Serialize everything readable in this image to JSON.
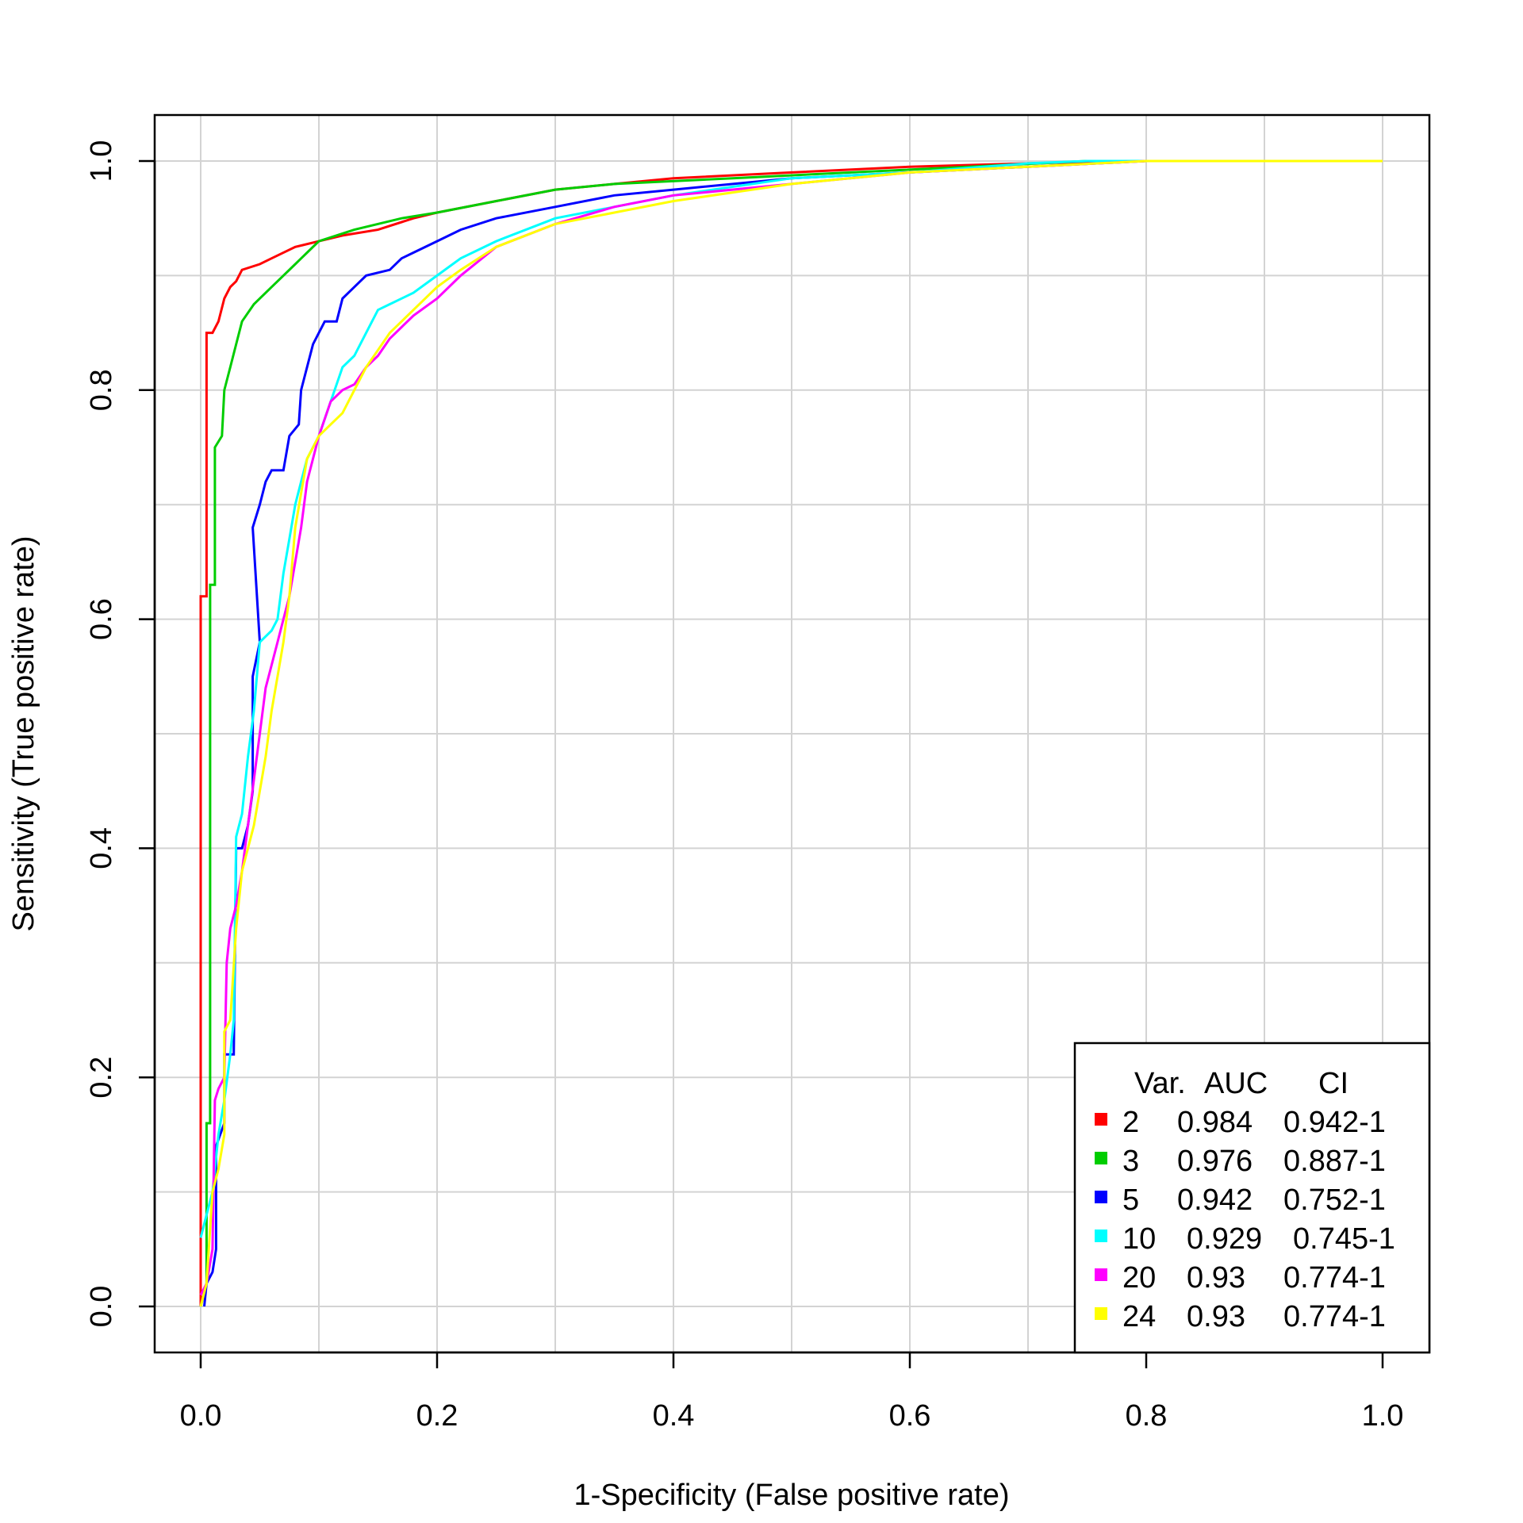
{
  "chart_data": {
    "type": "line",
    "title": "",
    "xlabel": "1-Specificity (False positive rate)",
    "ylabel": "Sensitivity (True positive rate)",
    "xlim": [
      0,
      1
    ],
    "ylim": [
      0,
      1
    ],
    "grid": true,
    "x_ticks": [
      "0.0",
      "0.2",
      "0.4",
      "0.6",
      "0.8",
      "1.0"
    ],
    "y_ticks": [
      "0.0",
      "0.2",
      "0.4",
      "0.6",
      "0.8",
      "1.0"
    ],
    "legend": {
      "position": "bottom-right",
      "header": {
        "var": "Var.",
        "auc": "AUC",
        "ci": "CI"
      }
    },
    "series": [
      {
        "name": "2",
        "auc": "0.984",
        "ci": "0.942-1",
        "color": "#ff0000",
        "points": [
          [
            0,
            0
          ],
          [
            0,
            0.62
          ],
          [
            0.005,
            0.62
          ],
          [
            0.005,
            0.85
          ],
          [
            0.01,
            0.85
          ],
          [
            0.015,
            0.86
          ],
          [
            0.02,
            0.88
          ],
          [
            0.025,
            0.89
          ],
          [
            0.03,
            0.895
          ],
          [
            0.035,
            0.905
          ],
          [
            0.05,
            0.91
          ],
          [
            0.06,
            0.915
          ],
          [
            0.08,
            0.925
          ],
          [
            0.1,
            0.93
          ],
          [
            0.12,
            0.935
          ],
          [
            0.15,
            0.94
          ],
          [
            0.18,
            0.95
          ],
          [
            0.2,
            0.955
          ],
          [
            0.25,
            0.965
          ],
          [
            0.3,
            0.975
          ],
          [
            0.35,
            0.98
          ],
          [
            0.4,
            0.985
          ],
          [
            0.5,
            0.99
          ],
          [
            0.6,
            0.995
          ],
          [
            0.7,
            0.998
          ],
          [
            0.8,
            1.0
          ],
          [
            1.0,
            1.0
          ]
        ]
      },
      {
        "name": "3",
        "auc": "0.976",
        "ci": "0.887-1",
        "color": "#00cd00",
        "points": [
          [
            0,
            0
          ],
          [
            0.005,
            0.02
          ],
          [
            0.005,
            0.16
          ],
          [
            0.008,
            0.16
          ],
          [
            0.008,
            0.63
          ],
          [
            0.012,
            0.63
          ],
          [
            0.012,
            0.75
          ],
          [
            0.018,
            0.76
          ],
          [
            0.02,
            0.8
          ],
          [
            0.025,
            0.82
          ],
          [
            0.03,
            0.84
          ],
          [
            0.035,
            0.86
          ],
          [
            0.045,
            0.875
          ],
          [
            0.06,
            0.89
          ],
          [
            0.07,
            0.9
          ],
          [
            0.08,
            0.91
          ],
          [
            0.09,
            0.92
          ],
          [
            0.1,
            0.93
          ],
          [
            0.13,
            0.94
          ],
          [
            0.17,
            0.95
          ],
          [
            0.2,
            0.955
          ],
          [
            0.25,
            0.965
          ],
          [
            0.3,
            0.975
          ],
          [
            0.35,
            0.98
          ],
          [
            0.45,
            0.985
          ],
          [
            0.55,
            0.99
          ],
          [
            0.65,
            0.995
          ],
          [
            0.75,
            1.0
          ],
          [
            1.0,
            1.0
          ]
        ]
      },
      {
        "name": "5",
        "auc": "0.942",
        "ci": "0.752-1",
        "color": "#0000ff",
        "points": [
          [
            0.003,
            0
          ],
          [
            0.005,
            0.02
          ],
          [
            0.01,
            0.03
          ],
          [
            0.013,
            0.05
          ],
          [
            0.013,
            0.14
          ],
          [
            0.02,
            0.16
          ],
          [
            0.02,
            0.22
          ],
          [
            0.028,
            0.22
          ],
          [
            0.03,
            0.4
          ],
          [
            0.035,
            0.4
          ],
          [
            0.04,
            0.42
          ],
          [
            0.044,
            0.45
          ],
          [
            0.044,
            0.55
          ],
          [
            0.05,
            0.58
          ],
          [
            0.044,
            0.68
          ],
          [
            0.05,
            0.7
          ],
          [
            0.055,
            0.72
          ],
          [
            0.06,
            0.73
          ],
          [
            0.07,
            0.73
          ],
          [
            0.075,
            0.76
          ],
          [
            0.083,
            0.77
          ],
          [
            0.085,
            0.8
          ],
          [
            0.09,
            0.82
          ],
          [
            0.095,
            0.84
          ],
          [
            0.1,
            0.85
          ],
          [
            0.105,
            0.86
          ],
          [
            0.115,
            0.86
          ],
          [
            0.12,
            0.88
          ],
          [
            0.13,
            0.89
          ],
          [
            0.14,
            0.9
          ],
          [
            0.16,
            0.905
          ],
          [
            0.17,
            0.915
          ],
          [
            0.18,
            0.92
          ],
          [
            0.2,
            0.93
          ],
          [
            0.22,
            0.94
          ],
          [
            0.25,
            0.95
          ],
          [
            0.3,
            0.96
          ],
          [
            0.35,
            0.97
          ],
          [
            0.4,
            0.975
          ],
          [
            0.5,
            0.985
          ],
          [
            0.6,
            0.99
          ],
          [
            0.7,
            0.995
          ],
          [
            0.8,
            1.0
          ],
          [
            1.0,
            1.0
          ]
        ]
      },
      {
        "name": "10",
        "auc": "0.929",
        "ci": "0.745-1",
        "color": "#00ffff",
        "points": [
          [
            0,
            0.06
          ],
          [
            0.005,
            0.08
          ],
          [
            0.01,
            0.1
          ],
          [
            0.015,
            0.15
          ],
          [
            0.02,
            0.18
          ],
          [
            0.025,
            0.22
          ],
          [
            0.028,
            0.25
          ],
          [
            0.03,
            0.41
          ],
          [
            0.035,
            0.43
          ],
          [
            0.04,
            0.48
          ],
          [
            0.045,
            0.52
          ],
          [
            0.05,
            0.58
          ],
          [
            0.055,
            0.585
          ],
          [
            0.06,
            0.59
          ],
          [
            0.065,
            0.6
          ],
          [
            0.07,
            0.64
          ],
          [
            0.075,
            0.67
          ],
          [
            0.08,
            0.7
          ],
          [
            0.085,
            0.72
          ],
          [
            0.09,
            0.74
          ],
          [
            0.1,
            0.76
          ],
          [
            0.11,
            0.79
          ],
          [
            0.12,
            0.82
          ],
          [
            0.13,
            0.83
          ],
          [
            0.14,
            0.85
          ],
          [
            0.15,
            0.87
          ],
          [
            0.16,
            0.875
          ],
          [
            0.18,
            0.885
          ],
          [
            0.2,
            0.9
          ],
          [
            0.22,
            0.915
          ],
          [
            0.25,
            0.93
          ],
          [
            0.3,
            0.95
          ],
          [
            0.35,
            0.96
          ],
          [
            0.4,
            0.97
          ],
          [
            0.5,
            0.985
          ],
          [
            0.6,
            0.99
          ],
          [
            0.7,
            0.998
          ],
          [
            0.75,
            1.0
          ],
          [
            1.0,
            1.0
          ]
        ]
      },
      {
        "name": "20",
        "auc": "0.93",
        "ci": "0.774-1",
        "color": "#ff00ff",
        "points": [
          [
            0,
            0.01
          ],
          [
            0.005,
            0.02
          ],
          [
            0.01,
            0.05
          ],
          [
            0.012,
            0.18
          ],
          [
            0.015,
            0.19
          ],
          [
            0.02,
            0.2
          ],
          [
            0.022,
            0.3
          ],
          [
            0.025,
            0.33
          ],
          [
            0.03,
            0.35
          ],
          [
            0.035,
            0.38
          ],
          [
            0.04,
            0.42
          ],
          [
            0.045,
            0.46
          ],
          [
            0.05,
            0.5
          ],
          [
            0.055,
            0.54
          ],
          [
            0.06,
            0.56
          ],
          [
            0.065,
            0.58
          ],
          [
            0.07,
            0.6
          ],
          [
            0.075,
            0.62
          ],
          [
            0.08,
            0.65
          ],
          [
            0.085,
            0.68
          ],
          [
            0.09,
            0.72
          ],
          [
            0.1,
            0.76
          ],
          [
            0.11,
            0.79
          ],
          [
            0.12,
            0.8
          ],
          [
            0.13,
            0.805
          ],
          [
            0.14,
            0.82
          ],
          [
            0.15,
            0.83
          ],
          [
            0.16,
            0.845
          ],
          [
            0.18,
            0.865
          ],
          [
            0.2,
            0.88
          ],
          [
            0.22,
            0.9
          ],
          [
            0.25,
            0.925
          ],
          [
            0.3,
            0.945
          ],
          [
            0.35,
            0.96
          ],
          [
            0.4,
            0.97
          ],
          [
            0.5,
            0.98
          ],
          [
            0.6,
            0.99
          ],
          [
            0.7,
            0.995
          ],
          [
            0.8,
            1.0
          ],
          [
            1.0,
            1.0
          ]
        ]
      },
      {
        "name": "24",
        "auc": "0.93",
        "ci": "0.774-1",
        "color": "#ffff00",
        "points": [
          [
            0,
            0
          ],
          [
            0.005,
            0.02
          ],
          [
            0.01,
            0.1
          ],
          [
            0.015,
            0.12
          ],
          [
            0.02,
            0.15
          ],
          [
            0.02,
            0.24
          ],
          [
            0.025,
            0.25
          ],
          [
            0.03,
            0.33
          ],
          [
            0.035,
            0.38
          ],
          [
            0.04,
            0.4
          ],
          [
            0.045,
            0.42
          ],
          [
            0.05,
            0.45
          ],
          [
            0.055,
            0.48
          ],
          [
            0.06,
            0.52
          ],
          [
            0.065,
            0.55
          ],
          [
            0.07,
            0.58
          ],
          [
            0.075,
            0.62
          ],
          [
            0.08,
            0.68
          ],
          [
            0.085,
            0.71
          ],
          [
            0.09,
            0.74
          ],
          [
            0.1,
            0.76
          ],
          [
            0.11,
            0.77
          ],
          [
            0.12,
            0.78
          ],
          [
            0.13,
            0.8
          ],
          [
            0.14,
            0.82
          ],
          [
            0.15,
            0.835
          ],
          [
            0.16,
            0.85
          ],
          [
            0.18,
            0.87
          ],
          [
            0.2,
            0.89
          ],
          [
            0.22,
            0.905
          ],
          [
            0.25,
            0.925
          ],
          [
            0.3,
            0.945
          ],
          [
            0.35,
            0.955
          ],
          [
            0.4,
            0.965
          ],
          [
            0.5,
            0.98
          ],
          [
            0.6,
            0.99
          ],
          [
            0.7,
            0.995
          ],
          [
            0.8,
            1.0
          ],
          [
            1.0,
            1.0
          ]
        ]
      }
    ]
  }
}
